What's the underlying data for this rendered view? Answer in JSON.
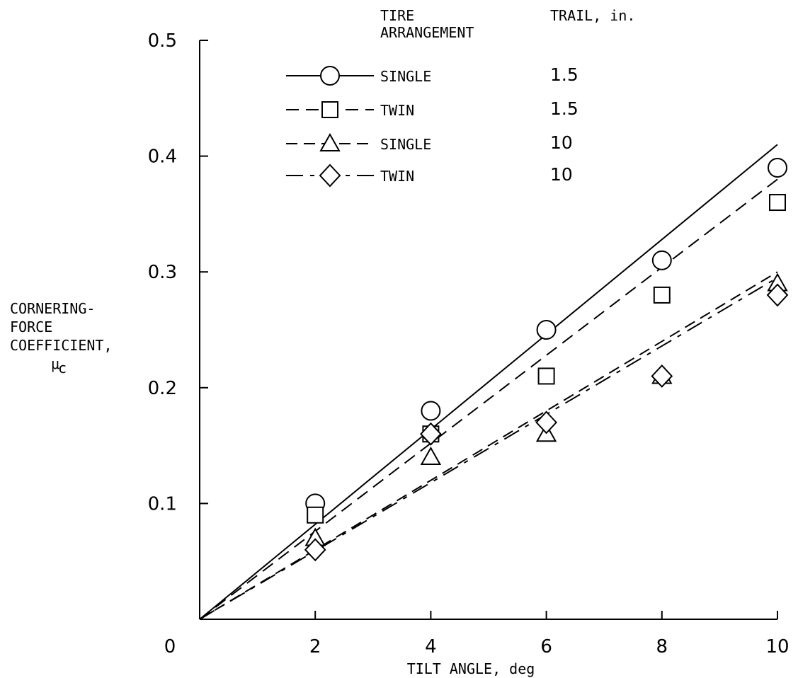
{
  "chart_data": {
    "type": "scatter",
    "xlabel": "TILT ANGLE, deg",
    "ylabel_lines": [
      "CORNERING-",
      "FORCE",
      "COEFFICIENT,",
      "μ",
      "c"
    ],
    "xlim": [
      0,
      10
    ],
    "ylim": [
      0,
      0.5
    ],
    "x_ticks": [
      0,
      2,
      4,
      6,
      8,
      10
    ],
    "x_tick_labels": [
      "0",
      "2",
      "4",
      "6",
      "8",
      "10"
    ],
    "y_ticks": [
      0.1,
      0.2,
      0.3,
      0.4,
      0.5
    ],
    "y_tick_labels": [
      "0.1",
      "0.2",
      "0.3",
      "0.4",
      "0.5"
    ],
    "grid": false,
    "legend": {
      "placement": "top-center",
      "header_col1": [
        "TIRE",
        "ARRANGEMENT"
      ],
      "header_col2": "TRAIL, in."
    },
    "series": [
      {
        "arrangement": "SINGLE",
        "trail": "1.5",
        "marker": "circle",
        "line_style": "solid",
        "x": [
          2,
          4,
          6,
          8,
          10
        ],
        "y": [
          0.1,
          0.18,
          0.25,
          0.31,
          0.39
        ],
        "fit": [
          [
            0,
            0
          ],
          [
            10,
            0.41
          ]
        ]
      },
      {
        "arrangement": "TWIN",
        "trail": "1.5",
        "marker": "square",
        "line_style": "dashed",
        "x": [
          2,
          4,
          6,
          8,
          10
        ],
        "y": [
          0.09,
          0.16,
          0.21,
          0.28,
          0.36
        ],
        "fit": [
          [
            0,
            0
          ],
          [
            10,
            0.38
          ]
        ]
      },
      {
        "arrangement": "SINGLE",
        "trail": "10",
        "marker": "triangle",
        "line_style": "dash-solid",
        "x": [
          2,
          4,
          6,
          8,
          10
        ],
        "y": [
          0.07,
          0.14,
          0.16,
          0.21,
          0.29
        ],
        "fit": [
          [
            0,
            0
          ],
          [
            10,
            0.3
          ]
        ]
      },
      {
        "arrangement": "TWIN",
        "trail": "10",
        "marker": "diamond",
        "line_style": "long-dash",
        "x": [
          2,
          4,
          6,
          8,
          10
        ],
        "y": [
          0.06,
          0.16,
          0.17,
          0.21,
          0.28
        ],
        "fit": [
          [
            0,
            0
          ],
          [
            10,
            0.295
          ]
        ]
      }
    ]
  }
}
